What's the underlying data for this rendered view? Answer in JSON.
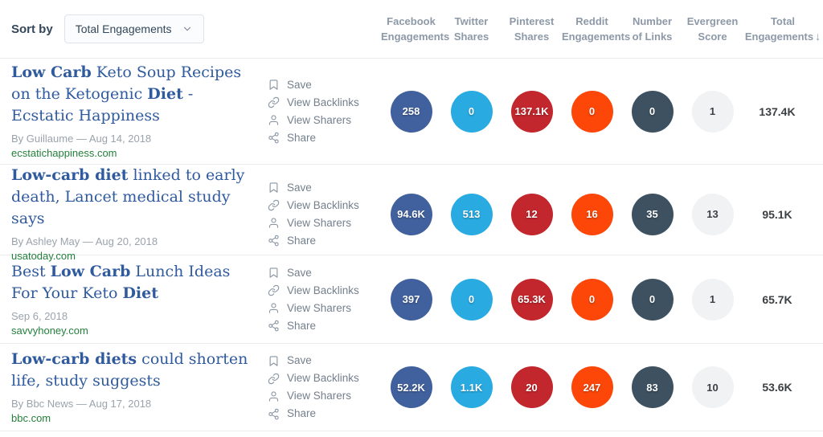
{
  "toolbar": {
    "sort_by_label": "Sort by",
    "sort_dropdown_value": "Total Engagements"
  },
  "header": {
    "columns": [
      {
        "line1": "Facebook",
        "line2": "Engagements"
      },
      {
        "line1": "Twitter",
        "line2": "Shares"
      },
      {
        "line1": "Pinterest",
        "line2": "Shares"
      },
      {
        "line1": "Reddit",
        "line2": "Engagements"
      },
      {
        "line1": "Number",
        "line2": "of Links"
      },
      {
        "line1": "Evergreen",
        "line2": "Score"
      },
      {
        "line1": "Total",
        "line2": "Engagements"
      }
    ],
    "sort_indicator": "↓"
  },
  "actions": {
    "save": "Save",
    "backlinks": "View Backlinks",
    "sharers": "View Sharers",
    "share": "Share"
  },
  "colors": {
    "facebook": "#41619e",
    "twitter": "#29abe2",
    "pinterest": "#c2272d",
    "reddit": "#fc4708",
    "links": "#3d5161",
    "evergreen_bg": "#f1f2f3",
    "title": "#2f5a9e",
    "domain_green": "#24803c"
  },
  "rows": [
    {
      "title_segments": [
        {
          "text": "Low Carb",
          "bold": true
        },
        {
          "text": " Keto Soup Recipes on the Ketogenic ",
          "bold": false
        },
        {
          "text": "Diet",
          "bold": true
        },
        {
          "text": " - Ecstatic Happiness",
          "bold": false
        }
      ],
      "byline": "By Guillaume — Aug 14, 2018",
      "domain": "ecstatichappiness.com",
      "metrics": {
        "facebook": "258",
        "twitter": "0",
        "pinterest": "137.1K",
        "reddit": "0",
        "links": "0",
        "evergreen": "1",
        "total": "137.4K"
      }
    },
    {
      "title_segments": [
        {
          "text": "Low-carb diet",
          "bold": true
        },
        {
          "text": " linked to early death, Lancet medical study says",
          "bold": false
        }
      ],
      "byline": "By Ashley May — Aug 20, 2018",
      "domain": "usatoday.com",
      "metrics": {
        "facebook": "94.6K",
        "twitter": "513",
        "pinterest": "12",
        "reddit": "16",
        "links": "35",
        "evergreen": "13",
        "total": "95.1K"
      }
    },
    {
      "title_segments": [
        {
          "text": "Best ",
          "bold": false
        },
        {
          "text": "Low Carb",
          "bold": true
        },
        {
          "text": " Lunch Ideas For Your Keto ",
          "bold": false
        },
        {
          "text": "Diet",
          "bold": true
        }
      ],
      "byline": "Sep 6, 2018",
      "domain": "savvyhoney.com",
      "metrics": {
        "facebook": "397",
        "twitter": "0",
        "pinterest": "65.3K",
        "reddit": "0",
        "links": "0",
        "evergreen": "1",
        "total": "65.7K"
      }
    },
    {
      "title_segments": [
        {
          "text": "Low-carb diets",
          "bold": true
        },
        {
          "text": " could shorten life, study suggests",
          "bold": false
        }
      ],
      "byline": "By Bbc News — Aug 17, 2018",
      "domain": "bbc.com",
      "metrics": {
        "facebook": "52.2K",
        "twitter": "1.1K",
        "pinterest": "20",
        "reddit": "247",
        "links": "83",
        "evergreen": "10",
        "total": "53.6K"
      }
    }
  ]
}
